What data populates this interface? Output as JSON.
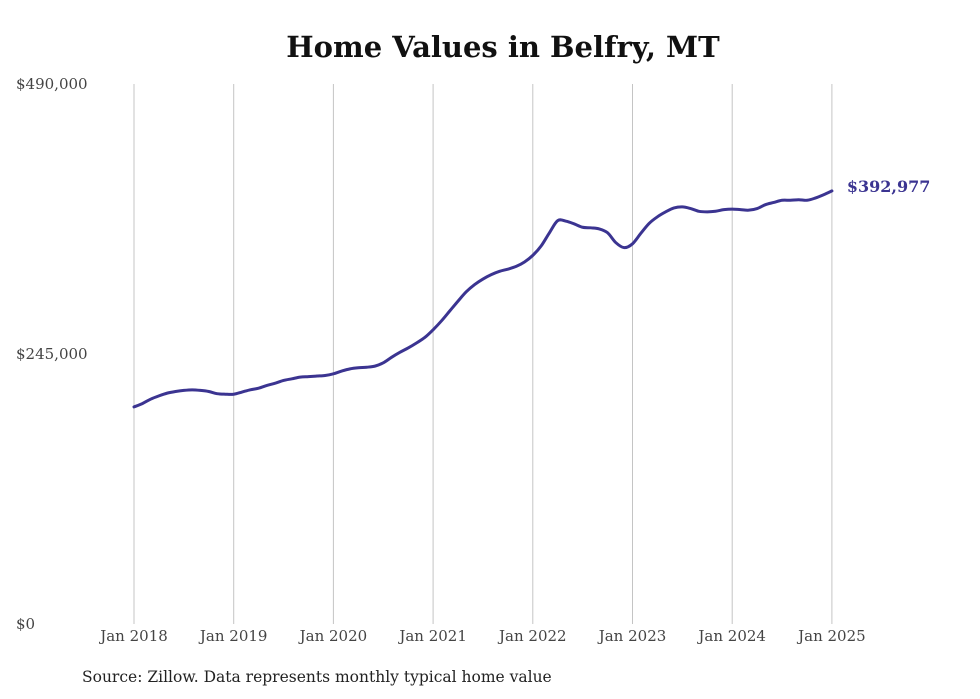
{
  "chart_data": {
    "type": "line",
    "title": "Home Values in Belfry, MT",
    "xlabel": "",
    "ylabel": "",
    "ylim": [
      0,
      490000
    ],
    "y_ticks": [
      0,
      245000,
      490000
    ],
    "y_tick_labels": [
      "$0",
      "$245,000",
      "$490,000"
    ],
    "x_ticks": [
      "2018-01",
      "2019-01",
      "2020-01",
      "2021-01",
      "2022-01",
      "2023-01",
      "2024-01",
      "2025-01"
    ],
    "x_tick_labels": [
      "Jan 2018",
      "Jan 2019",
      "Jan 2020",
      "Jan 2021",
      "Jan 2022",
      "Jan 2023",
      "Jan 2024",
      "Jan 2025"
    ],
    "grid": "vertical lines at each January",
    "legend": "none",
    "end_label": "$392,977",
    "series": [
      {
        "color": "#3b3491",
        "points": [
          [
            "2018-01",
            197000
          ],
          [
            "2018-02",
            200000
          ],
          [
            "2018-03",
            204000
          ],
          [
            "2018-04",
            207000
          ],
          [
            "2018-05",
            209500
          ],
          [
            "2018-06",
            211000
          ],
          [
            "2018-07",
            212000
          ],
          [
            "2018-08",
            212500
          ],
          [
            "2018-09",
            212000
          ],
          [
            "2018-10",
            211000
          ],
          [
            "2018-11",
            209000
          ],
          [
            "2018-12",
            208500
          ],
          [
            "2019-01",
            208500
          ],
          [
            "2019-02",
            210500
          ],
          [
            "2019-03",
            212500
          ],
          [
            "2019-04",
            214000
          ],
          [
            "2019-05",
            216500
          ],
          [
            "2019-06",
            218500
          ],
          [
            "2019-07",
            221000
          ],
          [
            "2019-08",
            222500
          ],
          [
            "2019-09",
            224000
          ],
          [
            "2019-10",
            224500
          ],
          [
            "2019-11",
            225000
          ],
          [
            "2019-12",
            225500
          ],
          [
            "2020-01",
            227000
          ],
          [
            "2020-02",
            229500
          ],
          [
            "2020-03",
            231500
          ],
          [
            "2020-04",
            232500
          ],
          [
            "2020-05",
            233000
          ],
          [
            "2020-06",
            234000
          ],
          [
            "2020-07",
            237000
          ],
          [
            "2020-08",
            242000
          ],
          [
            "2020-09",
            246500
          ],
          [
            "2020-10",
            250500
          ],
          [
            "2020-11",
            255000
          ],
          [
            "2020-12",
            260000
          ],
          [
            "2021-01",
            267000
          ],
          [
            "2021-02",
            275000
          ],
          [
            "2021-03",
            284000
          ],
          [
            "2021-04",
            293000
          ],
          [
            "2021-05",
            301500
          ],
          [
            "2021-06",
            308000
          ],
          [
            "2021-07",
            313000
          ],
          [
            "2021-08",
            317000
          ],
          [
            "2021-09",
            320000
          ],
          [
            "2021-10",
            322000
          ],
          [
            "2021-11",
            324500
          ],
          [
            "2021-12",
            328500
          ],
          [
            "2022-01",
            334500
          ],
          [
            "2022-02",
            343000
          ],
          [
            "2022-03",
            355000
          ],
          [
            "2022-04",
            366000
          ],
          [
            "2022-05",
            365500
          ],
          [
            "2022-06",
            363000
          ],
          [
            "2022-07",
            360000
          ],
          [
            "2022-08",
            359500
          ],
          [
            "2022-09",
            358500
          ],
          [
            "2022-10",
            355000
          ],
          [
            "2022-11",
            346000
          ],
          [
            "2022-12",
            341500
          ],
          [
            "2023-01",
            345000
          ],
          [
            "2023-02",
            354500
          ],
          [
            "2023-03",
            363500
          ],
          [
            "2023-04",
            369500
          ],
          [
            "2023-05",
            374000
          ],
          [
            "2023-06",
            377500
          ],
          [
            "2023-07",
            378500
          ],
          [
            "2023-08",
            377000
          ],
          [
            "2023-09",
            374500
          ],
          [
            "2023-10",
            374000
          ],
          [
            "2023-11",
            374500
          ],
          [
            "2023-12",
            376000
          ],
          [
            "2024-01",
            376500
          ],
          [
            "2024-02",
            376000
          ],
          [
            "2024-03",
            375500
          ],
          [
            "2024-04",
            377000
          ],
          [
            "2024-05",
            380500
          ],
          [
            "2024-06",
            382500
          ],
          [
            "2024-07",
            384500
          ],
          [
            "2024-08",
            384500
          ],
          [
            "2024-09",
            385000
          ],
          [
            "2024-10",
            384500
          ],
          [
            "2024-11",
            386500
          ],
          [
            "2024-12",
            389500
          ],
          [
            "2025-01",
            392977
          ]
        ]
      }
    ]
  },
  "source_note": "Source: Zillow. Data represents monthly typical home value"
}
